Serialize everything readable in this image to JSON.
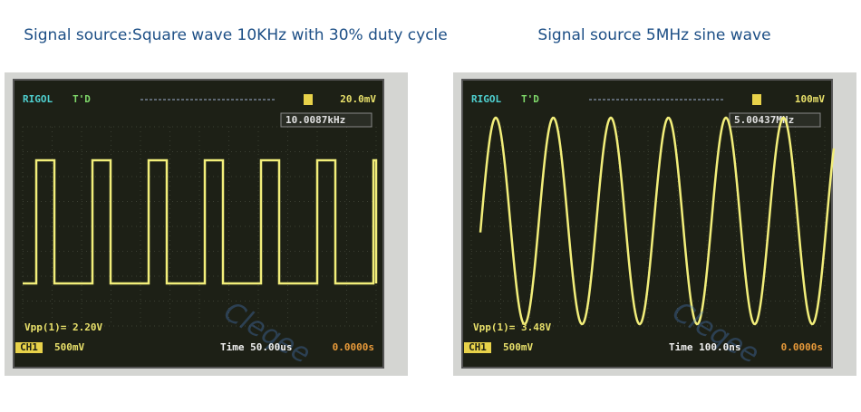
{
  "panels": [
    {
      "caption": "Signal source:Square wave 10KHz with 30% duty cycle",
      "scope": {
        "brand": "RIGOL",
        "mode": "T'D",
        "trigger_level": "20.0mV",
        "frequency": "10.0087kHz",
        "vpp": "Vpp(1)= 2.20V",
        "channel": "CH1",
        "scale": "500mV",
        "timebase": "Time 50.00us",
        "offset": "0.0000s",
        "watermark": "Cleqee",
        "wave": "square"
      }
    },
    {
      "caption": "Signal source 5MHz sine wave",
      "scope": {
        "brand": "RIGOL",
        "mode": "T'D",
        "trigger_level": "100mV",
        "frequency": "5.00437MHz",
        "vpp": "Vpp(1)= 3.48V",
        "channel": "CH1",
        "scale": "500mV",
        "timebase": "Time 100.0ns",
        "offset": "0.0000s",
        "watermark": "Cleqee",
        "wave": "sine"
      }
    }
  ]
}
